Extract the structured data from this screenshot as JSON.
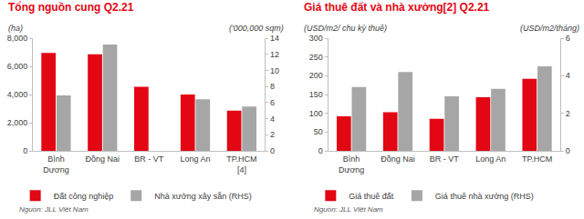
{
  "chart_data": [
    {
      "type": "bar",
      "title": "Tổng nguồn cung Q2.21",
      "ylabel": "(ha)",
      "y2label": "('000,000 sqm)",
      "source": "Nguồn: JLL Việt Nam",
      "categories": [
        "Bình Dương",
        "Đồng Nai",
        "BR - VT",
        "Long An",
        "TP.HCM [4]"
      ],
      "series": [
        {
          "name": "Đất công nghiệp",
          "color": "#e30613",
          "values": [
            6950,
            6850,
            4550,
            4000,
            2850
          ]
        },
        {
          "name": "Nhà xưởng xây sẵn (RHS)",
          "color": "#a6a6a6",
          "axis": "y2",
          "values": [
            6.9,
            13.2,
            null,
            6.4,
            5.5
          ]
        }
      ],
      "ylim": [
        0,
        8000
      ],
      "yticks": [
        0,
        {
          "value": 2000,
          "label": "2,000"
        },
        {
          "value": 4000,
          "label": "4,000"
        },
        {
          "value": 6000,
          "label": "6,000"
        },
        {
          "value": 8000,
          "label": "8,000"
        }
      ],
      "y2lim": [
        0,
        14
      ],
      "y2ticks": [
        0,
        2,
        4,
        6,
        8,
        10,
        12,
        14
      ],
      "grid": false,
      "legend": "bottom"
    },
    {
      "type": "bar",
      "title": "Giá thuê đất và nhà xưởng[2] Q2.21",
      "ylabel": "(USD/m2/ chu kỳ thuê)",
      "y2label": "(USD/m2/tháng)",
      "source": "Nguồn: JLL Việt Nam",
      "categories": [
        "Bình Dương",
        "Đồng Nai",
        "BR - VT",
        "Long An",
        "TP.HCM"
      ],
      "series": [
        {
          "name": "Giá thuê đất",
          "color": "#e30613",
          "values": [
            92,
            103,
            85,
            143,
            192
          ]
        },
        {
          "name": "Giá thuê nhà xưởng (RHS)",
          "color": "#a6a6a6",
          "axis": "y2",
          "values": [
            3.4,
            4.2,
            2.9,
            3.3,
            4.5
          ]
        }
      ],
      "ylim": [
        0,
        300
      ],
      "yticks": [
        0,
        50,
        100,
        150,
        200,
        250,
        300
      ],
      "y2lim": [
        0,
        6
      ],
      "y2ticks": [
        0,
        2,
        4,
        6
      ],
      "grid": false,
      "legend": "bottom"
    }
  ]
}
